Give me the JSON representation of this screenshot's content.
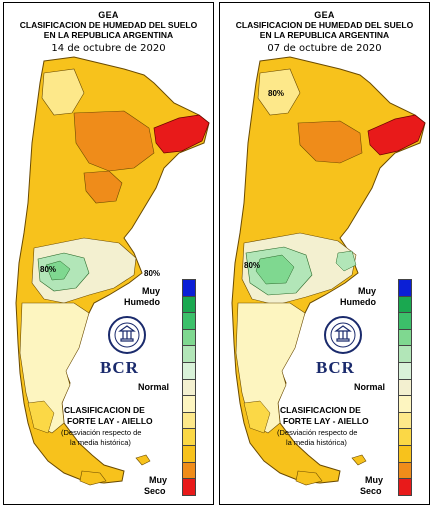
{
  "panels": [
    {
      "title": "GEA",
      "subtitle1": "CLASIFICACION DE HUMEDAD DEL SUELO",
      "subtitle2": "EN LA REPUBLICA ARGENTINA",
      "date": "14 de octubre de 2020",
      "contour_label_a": "80%",
      "contour_label_b": "80%"
    },
    {
      "title": "GEA",
      "subtitle1": "CLASIFICACION DE HUMEDAD DEL SUELO",
      "subtitle2": "EN LA REPUBLICA ARGENTINA",
      "date": "07 de octubre de 2020",
      "contour_label_a": "80%",
      "contour_label_b": "80%"
    }
  ],
  "legend": {
    "muy_humedo_1": "Muy",
    "muy_humedo_2": "Humedo",
    "normal": "Normal",
    "muy_seco_1": "Muy",
    "muy_seco_2": "Seco",
    "classification_1": "CLASIFICACION DE",
    "classification_2": "FORTE LAY - AIELLO",
    "note_1": "(Desviación respecto de",
    "note_2": "la media histórica)",
    "logo_text": "BCR",
    "seal_text": "BOLSA DE COMERCIO DE ROSARIO",
    "colors": [
      "#0b1fd6",
      "#1aa850",
      "#3cc06a",
      "#7fd890",
      "#b2e6b8",
      "#d9f2d9",
      "#f3f0d0",
      "#fdf5c0",
      "#fde88a",
      "#fbd846",
      "#f7c21c",
      "#ef8c1a",
      "#e81a1a"
    ]
  }
}
